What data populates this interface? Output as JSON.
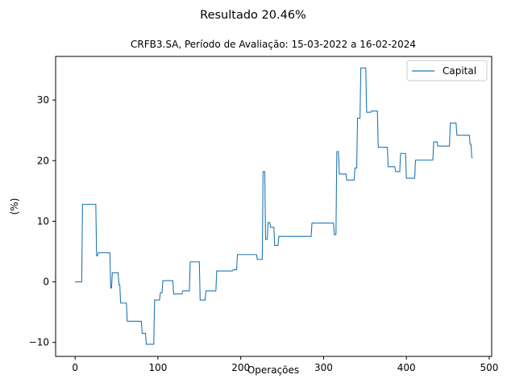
{
  "chart_data": {
    "type": "line",
    "suptitle": "Resultado 20.46%",
    "title": "CRFB3.SA, Período de Avaliação: 15-03-2022 a 16-02-2024",
    "xlabel": "Operações",
    "ylabel": "(%)",
    "xlim": [
      -23.5,
      503
    ],
    "ylim": [
      -12.3,
      37.2
    ],
    "xticks": [
      0,
      100,
      200,
      300,
      400,
      500
    ],
    "yticks": [
      -10,
      0,
      10,
      20,
      30
    ],
    "grid": false,
    "legend_position": "top-right",
    "line_color": "#1f77b4",
    "series": [
      {
        "name": "Capital",
        "x": [
          0,
          8,
          9,
          25,
          26,
          27,
          28,
          42,
          43,
          44,
          45,
          52,
          53,
          54,
          55,
          61,
          62,
          63,
          64,
          80,
          81,
          85,
          86,
          95,
          96,
          102,
          103,
          105,
          106,
          112,
          113,
          118,
          119,
          128,
          129,
          130,
          131,
          138,
          139,
          140,
          141,
          150,
          151,
          156,
          157,
          158,
          159,
          170,
          171,
          190,
          191,
          195,
          196,
          219,
          220,
          226,
          227,
          229,
          230,
          232,
          233,
          235,
          236,
          240,
          241,
          245,
          246,
          285,
          286,
          312,
          313,
          315,
          316,
          318,
          319,
          327,
          328,
          337,
          338,
          340,
          341,
          344,
          345,
          351,
          352,
          357,
          358,
          365,
          366,
          377,
          378,
          386,
          387,
          392,
          393,
          398,
          399,
          400,
          401,
          410,
          411,
          432,
          433,
          437,
          438,
          452,
          453,
          460,
          461,
          476,
          477,
          478,
          479,
          480
        ],
        "y": [
          0.0,
          0.0,
          12.8,
          12.8,
          4.3,
          4.3,
          4.8,
          4.8,
          -1.0,
          -1.0,
          1.5,
          1.5,
          -0.5,
          -0.5,
          -3.5,
          -3.5,
          -3.5,
          -6.5,
          -6.5,
          -6.5,
          -8.5,
          -8.5,
          -10.3,
          -10.3,
          -3.0,
          -3.0,
          -1.8,
          -1.8,
          0.2,
          0.2,
          0.2,
          0.2,
          -2.0,
          -2.0,
          -2.0,
          -1.5,
          -1.5,
          -1.5,
          3.3,
          3.3,
          3.3,
          3.3,
          -3.0,
          -3.0,
          -3.0,
          -1.5,
          -1.5,
          -1.5,
          1.8,
          1.8,
          2.0,
          2.0,
          4.5,
          4.5,
          3.7,
          3.7,
          18.2,
          18.2,
          7.0,
          7.0,
          9.8,
          9.8,
          9.0,
          9.0,
          6.0,
          6.0,
          7.5,
          7.5,
          9.7,
          9.7,
          7.8,
          7.8,
          21.5,
          21.5,
          17.8,
          17.8,
          16.8,
          16.8,
          18.8,
          18.8,
          27.0,
          27.0,
          35.3,
          35.3,
          28.0,
          28.0,
          28.2,
          28.2,
          22.2,
          22.2,
          19.0,
          19.0,
          18.2,
          18.2,
          21.2,
          21.2,
          21.2,
          17.1,
          17.1,
          17.1,
          20.1,
          20.1,
          23.1,
          23.1,
          22.4,
          22.4,
          26.2,
          26.2,
          24.2,
          24.2,
          22.7,
          22.7,
          20.5,
          20.46
        ]
      }
    ]
  }
}
